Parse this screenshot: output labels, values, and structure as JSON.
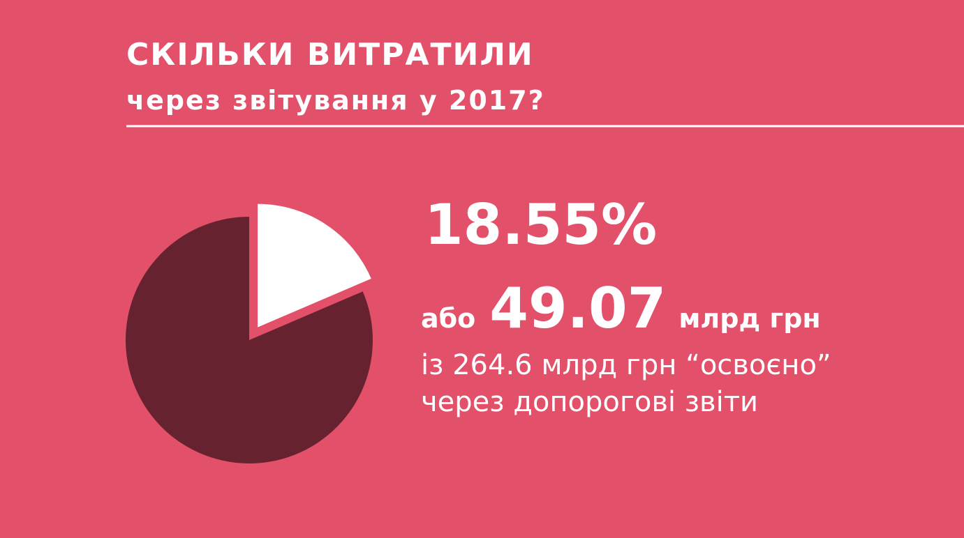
{
  "chart_data": {
    "type": "pie",
    "title": "СКІЛЬКИ ВИТРАТИЛИ",
    "subtitle": "через звітування у 2017?",
    "values": [
      18.55,
      81.45
    ],
    "value_labels": [
      "18.55%",
      null
    ],
    "colors": [
      "#ffffff",
      "#66232f"
    ],
    "annotations": [
      "або",
      "49.07",
      "млрд грн",
      "із 264.6 млрд грн “освоєно”",
      "через допорогові звіти"
    ]
  }
}
